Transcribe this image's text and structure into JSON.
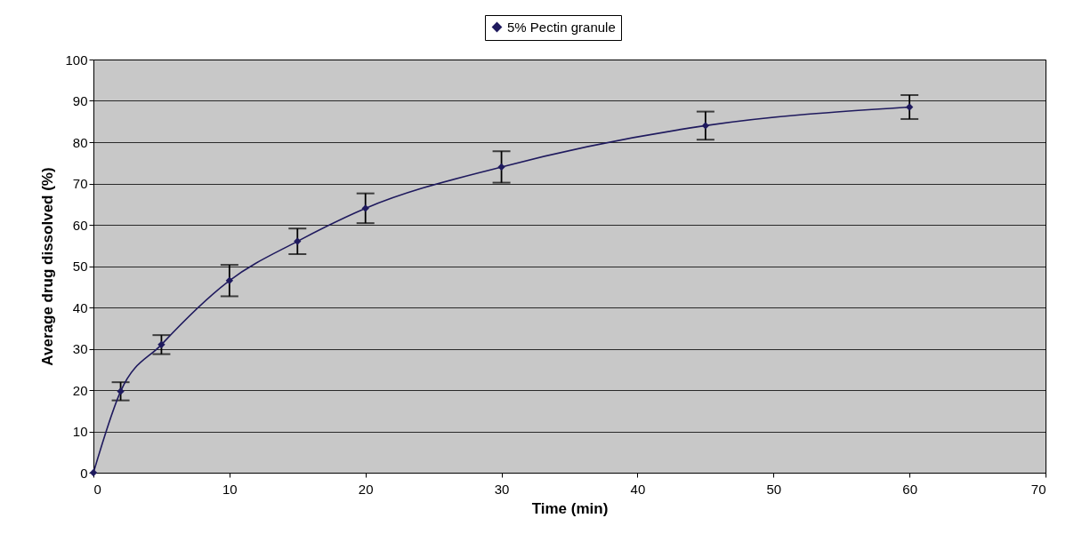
{
  "chart_data": {
    "type": "line",
    "xlabel": "Time (min)",
    "ylabel": "Average drug dissolved (%)",
    "x": [
      0,
      2,
      5,
      10,
      15,
      20,
      30,
      45,
      60
    ],
    "series": [
      {
        "name": "5% Pectin granule",
        "color": "#1f1a5e",
        "values": [
          0,
          19.7,
          31,
          46.5,
          56,
          64,
          74,
          84,
          88.5
        ],
        "errors": [
          null,
          2.2,
          2.3,
          3.8,
          3.1,
          3.6,
          3.8,
          3.4,
          2.9
        ]
      }
    ],
    "xlim": [
      0,
      70
    ],
    "xticks": [
      0,
      10,
      20,
      30,
      40,
      50,
      60,
      70
    ],
    "ylim": [
      0,
      100
    ],
    "yticks": [
      0,
      10,
      20,
      30,
      40,
      50,
      60,
      70,
      80,
      90,
      100
    ],
    "grid": "y",
    "legend": "top",
    "marker": "diamond",
    "line_style": "solid"
  }
}
